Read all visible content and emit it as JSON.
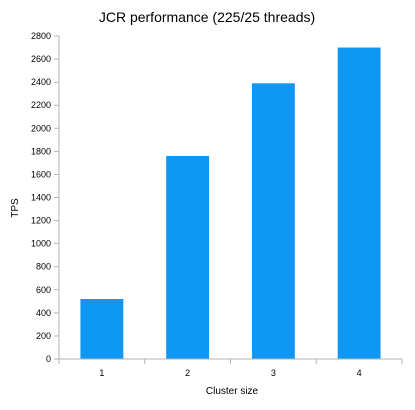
{
  "chart_data": {
    "type": "bar",
    "title": "JCR performance (225/25 threads)",
    "xlabel": "Cluster size",
    "ylabel": "TPS",
    "categories": [
      "1",
      "2",
      "3",
      "4"
    ],
    "values": [
      520,
      1760,
      2390,
      2700
    ],
    "ylim": [
      0,
      2800
    ],
    "yticks": [
      "0",
      "200",
      "400",
      "600",
      "800",
      "1000",
      "1200",
      "1400",
      "1600",
      "1800",
      "2000",
      "2200",
      "2400",
      "2600",
      "2800"
    ],
    "grid": false,
    "legend": "none",
    "bar_color": "#0f97f5",
    "axis_color": "#b3b3b3"
  }
}
